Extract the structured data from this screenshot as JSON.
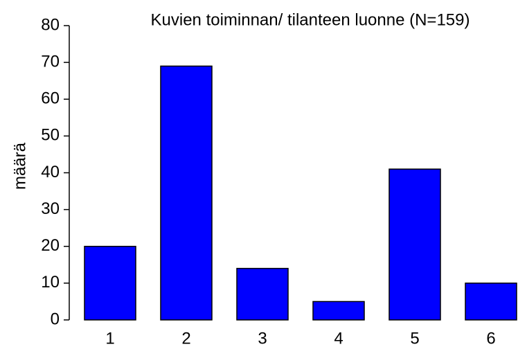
{
  "chart_data": {
    "type": "bar",
    "title": "Kuvien toiminnan/ tilanteen luonne (N=159)",
    "y_label": "määrä",
    "categories": [
      "1",
      "2",
      "3",
      "4",
      "5",
      "6"
    ],
    "values": [
      20,
      69,
      14,
      5,
      41,
      10
    ],
    "color": "#0000ff",
    "ylim": [
      0,
      80
    ],
    "yticks": [
      0,
      10,
      20,
      30,
      40,
      50,
      60,
      70,
      80
    ]
  }
}
